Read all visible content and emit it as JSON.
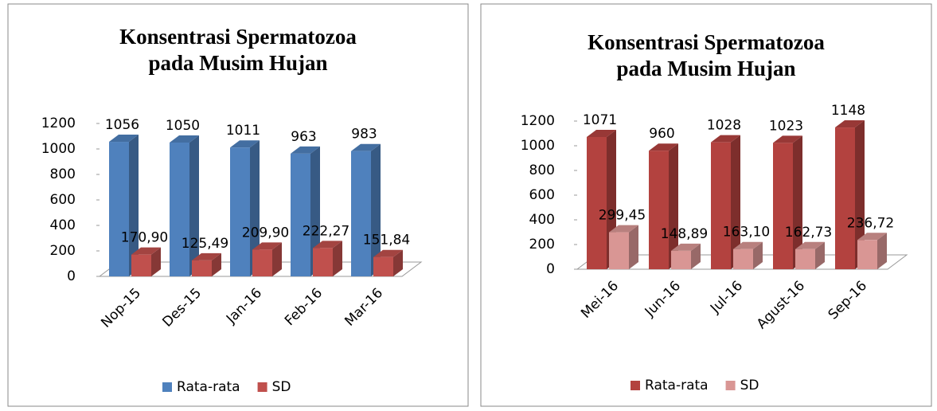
{
  "chart_data": [
    {
      "type": "bar3d",
      "title": "Konsentrasi Spermatozoa pada Musim Hujan",
      "categories": [
        "Nop-15",
        "Des-15",
        "Jan-16",
        "Feb-16",
        "Mar-16"
      ],
      "series": [
        {
          "name": "Rata-rata",
          "color": "#4f81bd",
          "values": [
            1056,
            1050,
            1011,
            963,
            983
          ]
        },
        {
          "name": "SD",
          "color": "#c0504d",
          "values": [
            170.9,
            125.49,
            209.9,
            222.27,
            151.84
          ],
          "value_labels": [
            "170,90",
            "125,49",
            "209,90",
            "222,27",
            "151,84"
          ]
        }
      ],
      "ylim": [
        0,
        1200
      ],
      "yticks": [
        0,
        200,
        400,
        600,
        800,
        1000,
        1200
      ],
      "legend": "bottom"
    },
    {
      "type": "bar3d",
      "title": "Konsentrasi Spermatozoa pada Musim Hujan",
      "categories": [
        "Mei-16",
        "Jun-16",
        "Jul-16",
        "Agust-16",
        "Sep-16"
      ],
      "series": [
        {
          "name": "Rata-rata",
          "color": "#b3423f",
          "values": [
            1071,
            960,
            1028,
            1023,
            1148
          ]
        },
        {
          "name": "SD",
          "color": "#d99694",
          "values": [
            299.45,
            148.89,
            163.1,
            162.73,
            236.72
          ],
          "value_labels": [
            "299,45",
            "148,89",
            "163,10",
            "162,73",
            "236,72"
          ]
        }
      ],
      "ylim": [
        0,
        1200
      ],
      "yticks": [
        0,
        200,
        400,
        600,
        800,
        1000,
        1200
      ],
      "legend": "bottom"
    }
  ]
}
